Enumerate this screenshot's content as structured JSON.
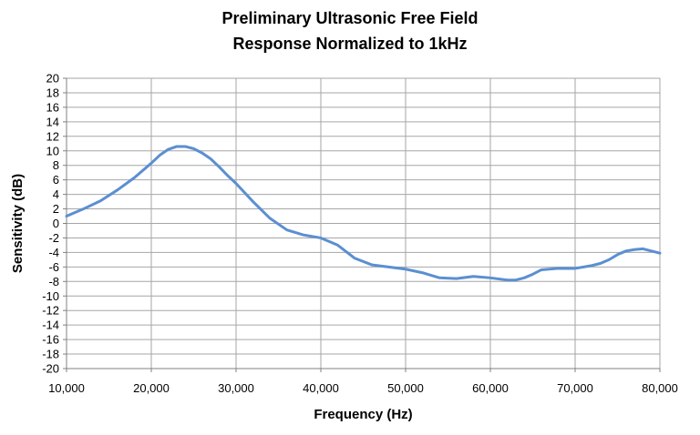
{
  "chart_data": {
    "type": "line",
    "title": [
      "Preliminary Ultrasonic Free Field",
      "Response Normalized to 1kHz"
    ],
    "xlabel": "Frequency (Hz)",
    "ylabel": "Sensitivity (dB)",
    "xlim": [
      10000,
      80000
    ],
    "ylim": [
      -20,
      20
    ],
    "x_ticks": [
      10000,
      20000,
      30000,
      40000,
      50000,
      60000,
      70000,
      80000
    ],
    "x_tick_labels": [
      "10,000",
      "20,000",
      "30,000",
      "40,000",
      "50,000",
      "60,000",
      "70,000",
      "80,000"
    ],
    "y_ticks": [
      20,
      18,
      16,
      14,
      12,
      10,
      8,
      6,
      4,
      2,
      0,
      -2,
      -4,
      -6,
      -8,
      -10,
      -12,
      -14,
      -16,
      -18,
      -20
    ],
    "y_tick_labels": [
      "20",
      "18",
      "16",
      "14",
      "12",
      "10",
      "8",
      "6",
      "4",
      "2",
      "0",
      "-2",
      "-4",
      "-6",
      "-8",
      "-10",
      "-12",
      "-14",
      "-16",
      "-18",
      "-20"
    ],
    "grid": true,
    "series_color": "#5b8fd1",
    "series": [
      {
        "x": [
          10000,
          12000,
          14000,
          16000,
          18000,
          20000,
          21000,
          22000,
          23000,
          24000,
          25000,
          26000,
          27000,
          28000,
          29000,
          30000,
          32000,
          34000,
          36000,
          38000,
          40000,
          42000,
          44000,
          46000,
          48000,
          50000,
          52000,
          54000,
          56000,
          58000,
          60000,
          62000,
          63000,
          64000,
          65000,
          66000,
          68000,
          70000,
          71000,
          72000,
          73000,
          74000,
          75000,
          76000,
          77000,
          78000,
          79000,
          80000
        ],
        "y": [
          1.0,
          2.0,
          3.1,
          4.6,
          6.3,
          8.3,
          9.4,
          10.2,
          10.6,
          10.6,
          10.3,
          9.7,
          8.9,
          7.8,
          6.6,
          5.5,
          3.0,
          0.7,
          -0.9,
          -1.6,
          -2.0,
          -3.0,
          -4.8,
          -5.7,
          -6.0,
          -6.3,
          -6.8,
          -7.5,
          -7.6,
          -7.3,
          -7.5,
          -7.8,
          -7.8,
          -7.5,
          -7.0,
          -6.4,
          -6.2,
          -6.2,
          -6.0,
          -5.8,
          -5.5,
          -5.0,
          -4.3,
          -3.8,
          -3.6,
          -3.5,
          -3.8,
          -4.1
        ]
      }
    ]
  }
}
